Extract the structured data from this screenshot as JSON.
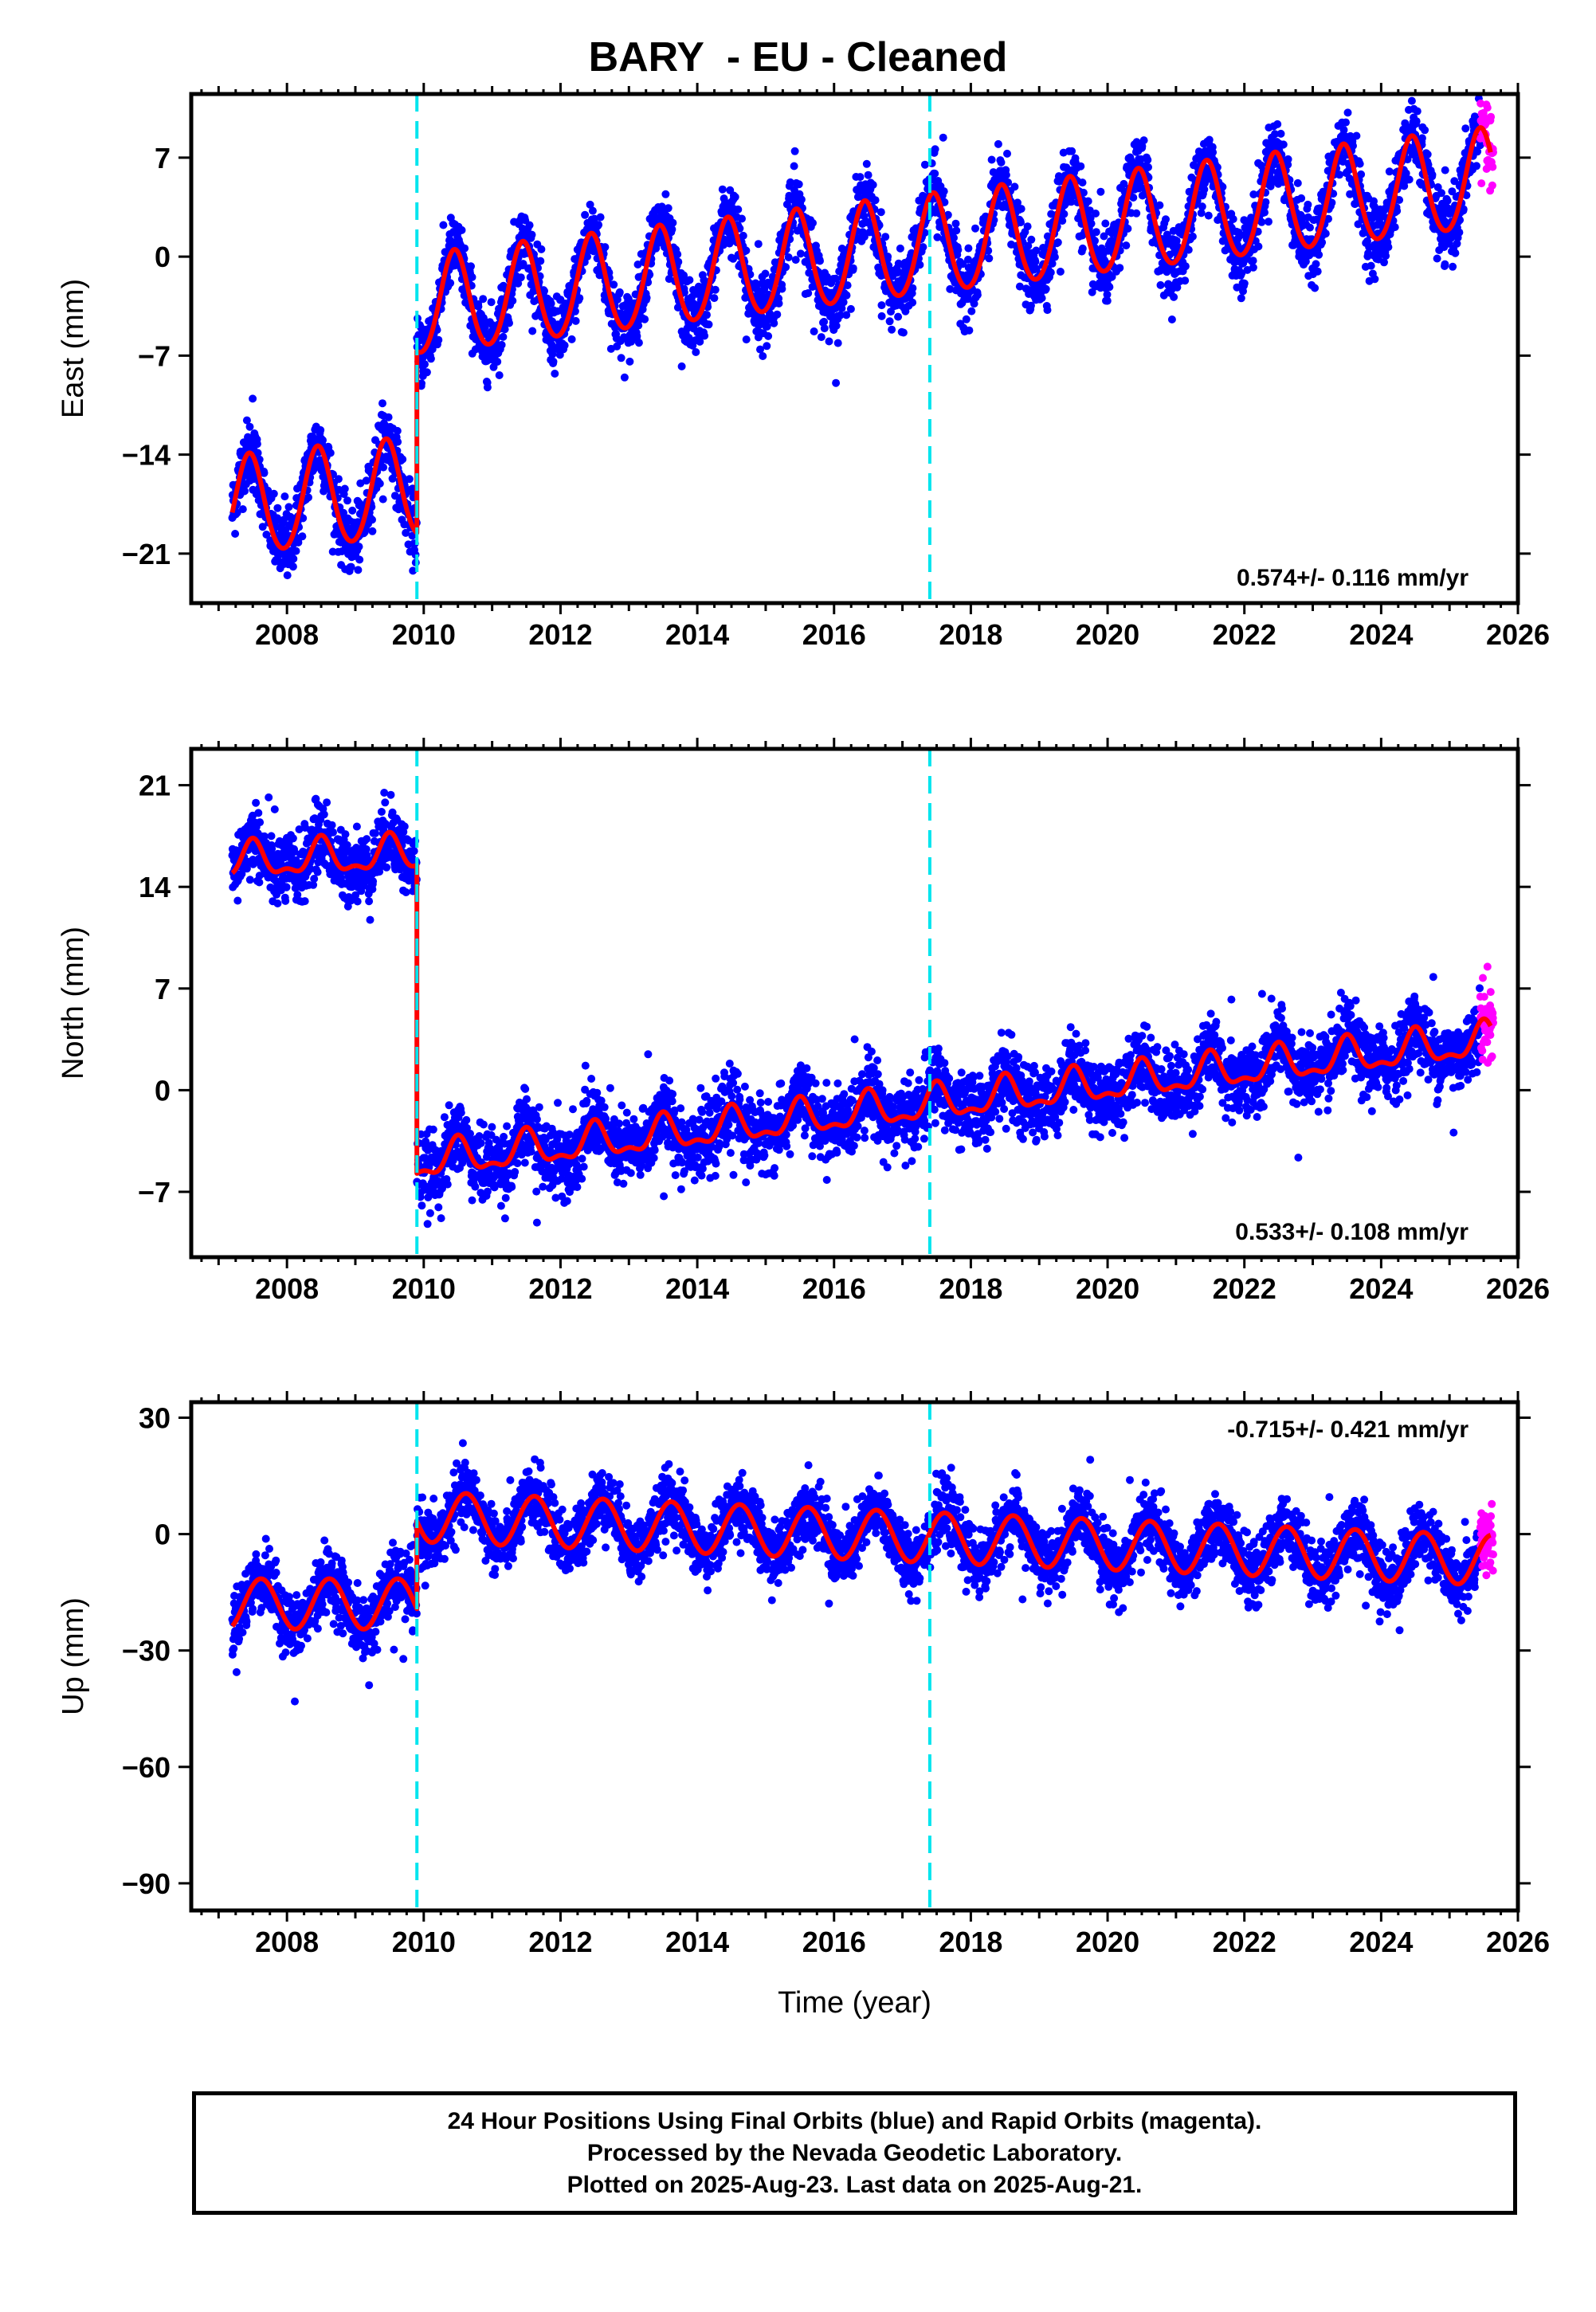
{
  "title": "BARY  - EU - Cleaned",
  "footer": {
    "line1": "24 Hour Positions Using Final Orbits (blue) and Rapid Orbits (magenta).",
    "line2": "Processed by the Nevada Geodetic Laboratory.",
    "line3": "Plotted on 2025-Aug-23. Last data on 2025-Aug-21."
  },
  "colors": {
    "final_orbits": "#0000ff",
    "rapid_orbits": "#ff00ff",
    "model": "#ff0000",
    "equipment_change": "#00e5ee"
  },
  "chart_data": [
    {
      "type": "scatter",
      "name": "east",
      "ylabel": "East (mm)",
      "xlabel": "",
      "xlim": [
        2006.6,
        2026.0
      ],
      "ylim": [
        -24.5,
        11.5
      ],
      "x_ticks": [
        2008,
        2010,
        2012,
        2014,
        2016,
        2018,
        2020,
        2022,
        2024,
        2026
      ],
      "y_ticks": [
        7,
        0,
        -7,
        -14,
        -21
      ],
      "y_tick_labels": [
        "7",
        "0",
        "−7",
        "−14",
        "−21"
      ],
      "rate": "0.574+/- 0.116 mm/yr",
      "rate_position": "bottom-right",
      "offset_lines": [
        2009.9,
        2017.4
      ],
      "model": {
        "segments": [
          {
            "start": 2007.2,
            "end": 2009.9,
            "start_value": -17.8,
            "trend": 0.5
          },
          {
            "start": 2009.9,
            "end": 2025.6,
            "start_value": -3.6,
            "trend": 0.574
          }
        ],
        "annual_amplitude": 3.5,
        "annual_peak": 0.45,
        "semiannual_amplitude": 0.3
      },
      "scatter_spread": 1.2,
      "data_start": 2007.2,
      "rapid_start": 2025.45,
      "data_end": 2025.64
    },
    {
      "type": "scatter",
      "name": "north",
      "ylabel": "North (mm)",
      "xlabel": "",
      "xlim": [
        2006.6,
        2026.0
      ],
      "ylim": [
        -11.5,
        23.5
      ],
      "x_ticks": [
        2008,
        2010,
        2012,
        2014,
        2016,
        2018,
        2020,
        2022,
        2024,
        2026
      ],
      "y_ticks": [
        21,
        14,
        7,
        0,
        -7
      ],
      "y_tick_labels": [
        "21",
        "14",
        "7",
        "0",
        "−7"
      ],
      "rate": "0.533+/- 0.108 mm/yr",
      "rate_position": "bottom-right",
      "offset_lines": [
        2009.9,
        2017.4
      ],
      "model": {
        "segments": [
          {
            "start": 2007.2,
            "end": 2009.9,
            "start_value": 15.7,
            "trend": 0.2
          },
          {
            "start": 2009.9,
            "end": 2025.6,
            "start_value": -5.0,
            "trend": 0.533
          }
        ],
        "annual_amplitude": 1.1,
        "annual_peak": 0.5,
        "semiannual_amplitude": 0.5
      },
      "scatter_spread": 1.2,
      "data_start": 2007.2,
      "rapid_start": 2025.45,
      "data_end": 2025.64
    },
    {
      "type": "scatter",
      "name": "up",
      "ylabel": "Up (mm)",
      "xlabel": "Time (year)",
      "xlim": [
        2006.6,
        2026.0
      ],
      "ylim": [
        -97,
        34
      ],
      "x_ticks": [
        2008,
        2010,
        2012,
        2014,
        2016,
        2018,
        2020,
        2022,
        2024,
        2026
      ],
      "y_ticks": [
        30,
        0,
        -30,
        -60,
        -90
      ],
      "y_tick_labels": [
        "30",
        "0",
        "−30",
        "−60",
        "−90"
      ],
      "rate": "-0.715+/- 0.421 mm/yr",
      "rate_position": "top-right",
      "offset_lines": [
        2009.9,
        2017.4
      ],
      "model": {
        "segments": [
          {
            "start": 2007.2,
            "end": 2009.9,
            "start_value": -18.0,
            "trend": 0.0
          },
          {
            "start": 2009.9,
            "end": 2025.6,
            "start_value": 4.5,
            "trend": -0.715
          }
        ],
        "annual_amplitude": 6.5,
        "annual_peak": 0.62,
        "semiannual_amplitude": 0.0
      },
      "scatter_spread": 4.0,
      "data_start": 2007.2,
      "rapid_start": 2025.45,
      "data_end": 2025.64
    }
  ]
}
